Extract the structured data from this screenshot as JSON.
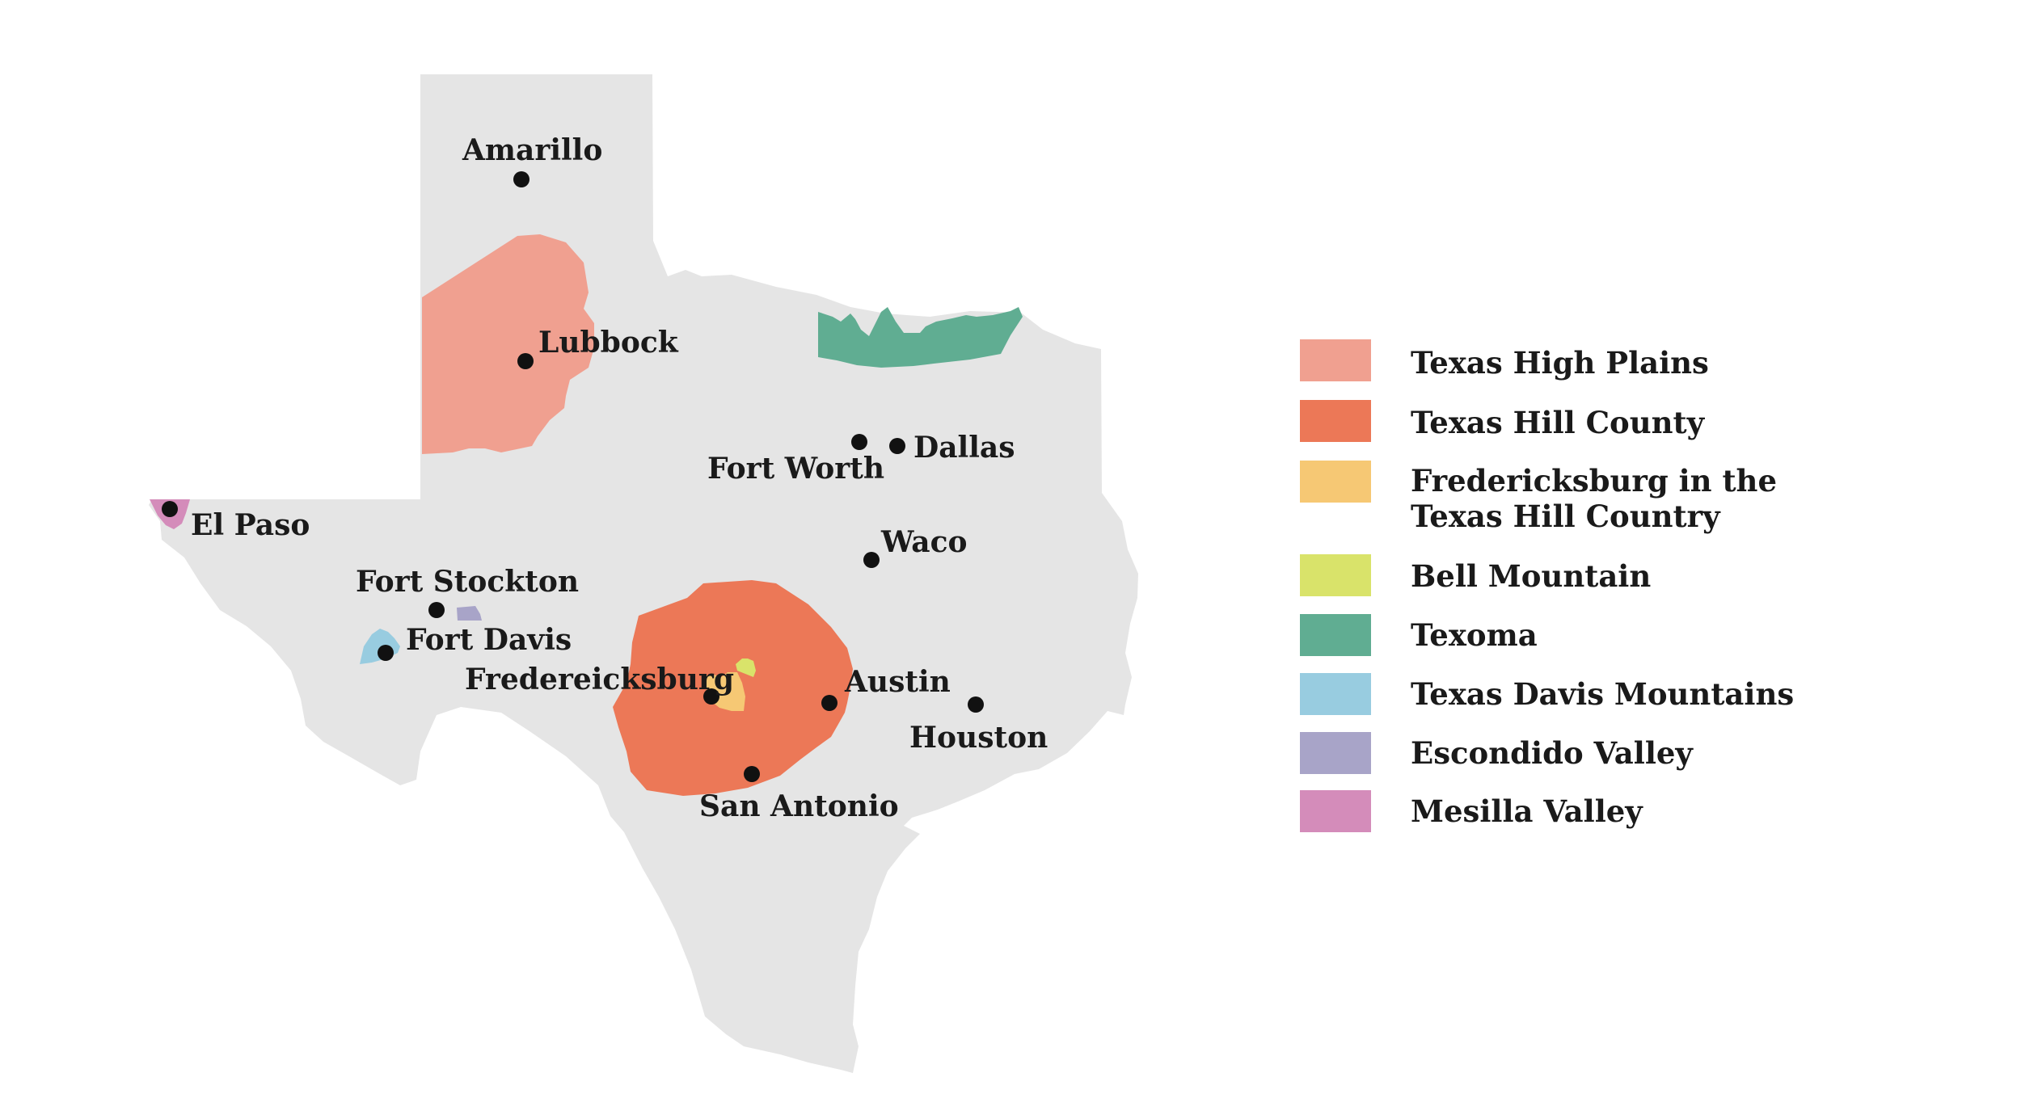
{
  "map": {
    "state_color": "#e5e5e5",
    "cities": [
      {
        "id": "amarillo",
        "name": "Amarillo"
      },
      {
        "id": "lubbock",
        "name": "Lubbock"
      },
      {
        "id": "fort-worth",
        "name": "Fort Worth"
      },
      {
        "id": "dallas",
        "name": "Dallas"
      },
      {
        "id": "el-paso",
        "name": "El Paso"
      },
      {
        "id": "waco",
        "name": "Waco"
      },
      {
        "id": "fort-stockton",
        "name": "Fort Stockton"
      },
      {
        "id": "fort-davis",
        "name": "Fort Davis"
      },
      {
        "id": "fredereicksburg",
        "name": "Fredereicksburg"
      },
      {
        "id": "austin",
        "name": "Austin"
      },
      {
        "id": "houston",
        "name": "Houston"
      },
      {
        "id": "san-antonio",
        "name": "San Antonio"
      }
    ]
  },
  "legend": {
    "items": [
      {
        "id": "texas-high-plains",
        "label": "Texas High Plains",
        "color": "#f0a090"
      },
      {
        "id": "texas-hill-county",
        "label": "Texas Hill County",
        "color": "#ec7857"
      },
      {
        "id": "fredericksburg",
        "label_line1": "Fredericksburg in the",
        "label_line2": "Texas Hill Country",
        "color": "#f6c874"
      },
      {
        "id": "bell-mountain",
        "label": "Bell Mountain",
        "color": "#d9e36a"
      },
      {
        "id": "texoma",
        "label": "Texoma",
        "color": "#60ad92"
      },
      {
        "id": "texas-davis-mountains",
        "label": "Texas Davis Mountains",
        "color": "#98cce0"
      },
      {
        "id": "escondido-valley",
        "label": "Escondido Valley",
        "color": "#a8a4c8"
      },
      {
        "id": "mesilla-valley",
        "label": "Mesilla Valley",
        "color": "#d48cba"
      }
    ]
  }
}
